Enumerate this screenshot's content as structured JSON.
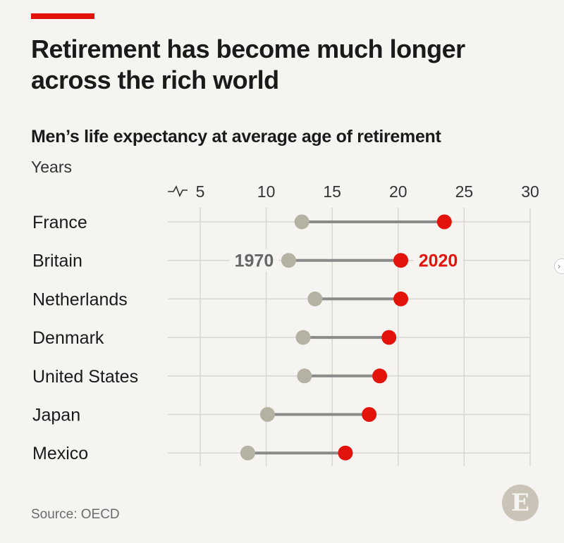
{
  "header": {
    "title": "Retirement has become much longer across the rich world",
    "subtitle": "Men’s life expectancy at average age of retirement",
    "unit": "Years"
  },
  "source": "Source: OECD",
  "logo_letter": "E",
  "colors": {
    "accent": "#e3120b",
    "dot_1970": "#b5b2a4",
    "dot_2020": "#e3120b",
    "connector": "#8a8a8a",
    "gridline": "#d8d6d1"
  },
  "icons": [
    "axis-break-icon",
    "economist-logo-icon",
    "chevron-right-icon"
  ],
  "chart_data": {
    "type": "dumbbell",
    "x_ticks": [
      5,
      10,
      15,
      20,
      25,
      30
    ],
    "xlim": [
      2.5,
      30
    ],
    "x_axis_break": true,
    "grid": true,
    "categories": [
      "France",
      "Britain",
      "Netherlands",
      "Denmark",
      "United States",
      "Japan",
      "Mexico"
    ],
    "series": [
      {
        "name": "1970",
        "values": [
          12.7,
          11.7,
          13.7,
          12.8,
          12.9,
          10.1,
          8.6
        ]
      },
      {
        "name": "2020",
        "values": [
          23.5,
          20.2,
          20.2,
          19.3,
          18.6,
          17.8,
          16.0
        ]
      }
    ],
    "annotations": [
      {
        "text": "1970",
        "row": "Britain",
        "series": "1970"
      },
      {
        "text": "2020",
        "row": "Britain",
        "series": "2020"
      }
    ]
  }
}
